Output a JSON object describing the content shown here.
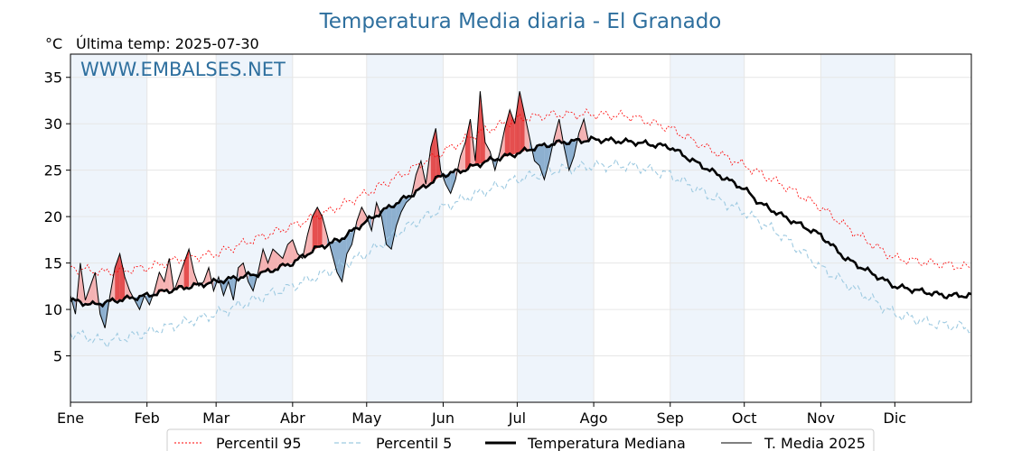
{
  "chart_data": {
    "type": "line",
    "title": "Temperatura Media diaria - El Granado",
    "unit_label": "°C",
    "last_temp_label": "Última temp: 2025-07-30",
    "watermark": "WWW.EMBALSES.NET",
    "ylim": [
      0,
      37.5
    ],
    "y_ticks": [
      5,
      10,
      15,
      20,
      25,
      30,
      35
    ],
    "xlim": [
      1,
      366
    ],
    "month_labels": [
      "Ene",
      "Feb",
      "Mar",
      "Abr",
      "May",
      "Jun",
      "Jul",
      "Ago",
      "Sep",
      "Oct",
      "Nov",
      "Dic"
    ],
    "month_start_days": [
      1,
      32,
      60,
      91,
      121,
      152,
      182,
      213,
      244,
      274,
      305,
      335
    ],
    "shaded_month_bands": true,
    "grid": true,
    "legend_position": "bottom",
    "legend": [
      "Percentil 95",
      "Percentil 5",
      "Temperatura Mediana",
      "T. Media 2025"
    ],
    "colors": {
      "p95": "#ff0000",
      "p5": "#9ecae1",
      "median": "#000000",
      "current": "#000000",
      "above_fill": "#f4a6a6",
      "above_strong_fill": "#e03030",
      "below_fill": "#7ba3c8",
      "title": "#2e6f9e",
      "band": "#eef4fb"
    },
    "series": [
      {
        "name": "Percentil 95",
        "style": "dotted-red",
        "x": [
          1,
          15,
          32,
          46,
          60,
          75,
          91,
          105,
          121,
          135,
          152,
          166,
          182,
          197,
          213,
          228,
          244,
          258,
          274,
          289,
          305,
          320,
          335,
          350,
          366
        ],
        "values": [
          14.5,
          14.0,
          14.5,
          15.5,
          16.0,
          17.5,
          19.0,
          20.5,
          22.5,
          24.5,
          27.0,
          29.0,
          30.5,
          31.0,
          31.0,
          30.8,
          29.5,
          27.5,
          25.5,
          23.5,
          21.0,
          18.0,
          15.5,
          15.0,
          14.5
        ]
      },
      {
        "name": "Percentil 5",
        "style": "dashed-lightblue",
        "x": [
          1,
          15,
          32,
          46,
          60,
          75,
          91,
          105,
          121,
          135,
          152,
          166,
          182,
          197,
          213,
          228,
          244,
          258,
          274,
          289,
          305,
          320,
          335,
          350,
          366
        ],
        "values": [
          7.5,
          6.5,
          7.5,
          8.5,
          9.5,
          11.0,
          12.5,
          14.0,
          16.0,
          18.5,
          21.0,
          22.5,
          24.0,
          25.0,
          25.5,
          25.5,
          24.5,
          22.5,
          20.5,
          18.0,
          14.5,
          12.0,
          9.5,
          8.5,
          8.0
        ]
      },
      {
        "name": "Temperatura Mediana",
        "style": "solid-black-thick",
        "x": [
          1,
          10,
          20,
          32,
          40,
          50,
          60,
          70,
          80,
          91,
          100,
          110,
          121,
          130,
          140,
          152,
          160,
          170,
          182,
          190,
          200,
          213,
          220,
          230,
          244,
          250,
          260,
          274,
          280,
          290,
          305,
          315,
          325,
          335,
          345,
          355,
          366
        ],
        "values": [
          11.0,
          10.5,
          11.0,
          11.5,
          12.0,
          12.5,
          13.0,
          13.5,
          14.0,
          15.0,
          16.5,
          17.5,
          19.5,
          21.0,
          22.5,
          24.5,
          25.0,
          26.0,
          26.8,
          27.5,
          28.0,
          28.3,
          28.2,
          28.0,
          27.5,
          26.5,
          25.0,
          23.0,
          21.5,
          20.0,
          18.0,
          15.5,
          14.0,
          12.5,
          12.0,
          11.5,
          11.5
        ]
      },
      {
        "name": "T. Media 2025",
        "style": "solid-black-thin",
        "x": [
          1,
          3,
          5,
          7,
          9,
          11,
          13,
          15,
          17,
          19,
          21,
          23,
          25,
          27,
          29,
          31,
          33,
          35,
          37,
          39,
          41,
          43,
          45,
          47,
          49,
          51,
          53,
          55,
          57,
          59,
          61,
          63,
          65,
          67,
          69,
          71,
          73,
          75,
          77,
          79,
          81,
          83,
          85,
          87,
          89,
          91,
          93,
          95,
          97,
          99,
          101,
          103,
          105,
          107,
          109,
          111,
          113,
          115,
          117,
          119,
          121,
          123,
          125,
          127,
          129,
          131,
          133,
          135,
          137,
          139,
          141,
          143,
          145,
          147,
          149,
          151,
          153,
          155,
          157,
          159,
          161,
          163,
          165,
          167,
          169,
          171,
          173,
          175,
          177,
          179,
          181,
          183,
          185,
          187,
          189,
          191,
          193,
          195,
          197,
          199,
          201,
          203,
          205,
          207,
          209,
          211
        ],
        "values": [
          11.5,
          9.5,
          15.0,
          11.0,
          12.5,
          14.0,
          9.5,
          8.0,
          11.5,
          14.5,
          16.0,
          13.5,
          12.0,
          11.0,
          10.0,
          11.5,
          10.5,
          12.0,
          14.0,
          13.0,
          15.5,
          12.0,
          13.5,
          15.0,
          16.5,
          14.0,
          12.5,
          13.0,
          14.5,
          12.0,
          13.5,
          11.5,
          13.0,
          11.0,
          14.5,
          15.0,
          13.0,
          12.0,
          14.0,
          16.5,
          15.0,
          16.5,
          16.0,
          15.5,
          17.0,
          17.5,
          16.0,
          15.5,
          18.0,
          20.0,
          21.0,
          20.0,
          18.0,
          16.0,
          14.0,
          13.0,
          16.0,
          17.0,
          19.5,
          21.0,
          20.0,
          18.5,
          21.5,
          20.0,
          17.0,
          16.5,
          19.0,
          20.5,
          21.5,
          22.0,
          24.5,
          26.0,
          23.5,
          27.5,
          29.5,
          25.0,
          23.5,
          22.5,
          24.0,
          26.5,
          28.0,
          30.5,
          26.0,
          33.5,
          28.0,
          27.0,
          25.0,
          27.0,
          29.5,
          31.5,
          30.0,
          33.5,
          31.0,
          28.5,
          26.0,
          25.5,
          24.0,
          26.0,
          28.5,
          30.5,
          27.5,
          25.0,
          26.5,
          29.0,
          30.5,
          28.0
        ]
      }
    ]
  }
}
